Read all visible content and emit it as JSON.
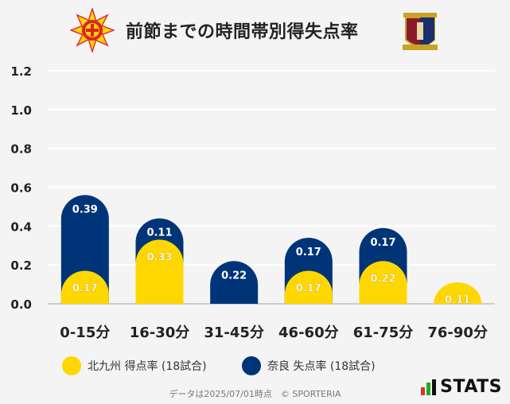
{
  "header": {
    "title": "前節までの時間帯別得失点率"
  },
  "legend": {
    "home_label": "北九州 得点率 (18試合)",
    "away_label": "奈良 失点率 (18試合)"
  },
  "footer": {
    "note": "データは2025/07/01時点　© SPORTERIA"
  },
  "brand": {
    "name": "STATS"
  },
  "colors": {
    "home": "#FFD700",
    "away": "#003479",
    "grid": "#ffffff",
    "background": "#f4f4f4"
  },
  "chart_data": {
    "type": "bar",
    "title": "前節までの時間帯別得失点率",
    "categories": [
      "0-15分",
      "16-30分",
      "31-45分",
      "46-60分",
      "61-75分",
      "76-90分"
    ],
    "series": [
      {
        "name": "北九州 得点率 (18試合)",
        "values": [
          0.17,
          0.33,
          0,
          0.17,
          0.22,
          0.11
        ]
      },
      {
        "name": "奈良 失点率 (18試合)",
        "values": [
          0.39,
          0.11,
          0.22,
          0.17,
          0.17,
          0
        ]
      }
    ],
    "stacked": true,
    "ylim": [
      0,
      1.2
    ],
    "yticks": [
      "0.0",
      "0.2",
      "0.4",
      "0.6",
      "0.8",
      "1.0",
      "1.2"
    ],
    "xlabel": "",
    "ylabel": ""
  }
}
